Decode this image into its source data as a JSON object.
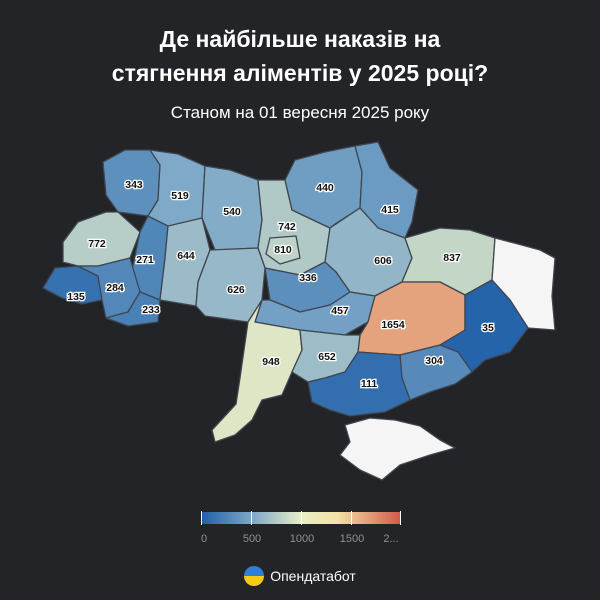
{
  "title_line1": "Де найбільше наказів на",
  "title_line2": "стягнення аліментів у 2025 році?",
  "subtitle": "Станом на 01 вересня 2025 року",
  "brand": "Опендатабот",
  "colors": {
    "background": "#232427",
    "low": "#1e5fa8",
    "mid": "#e8efc6",
    "high": "#d1584a",
    "no_data": "#f5f5f5"
  },
  "legend": {
    "ticks": [
      "0",
      "500",
      "1000",
      "1500",
      "2..."
    ],
    "min": 0,
    "max": 2000
  },
  "regions": [
    {
      "name": "Volyn",
      "value": 343
    },
    {
      "name": "Rivne",
      "value": 519
    },
    {
      "name": "Zhytomyr",
      "value": 540
    },
    {
      "name": "Kyiv oblast",
      "value": 742
    },
    {
      "name": "Kyiv city",
      "value": 810
    },
    {
      "name": "Chernihiv",
      "value": 440
    },
    {
      "name": "Sumy",
      "value": 415
    },
    {
      "name": "Lviv",
      "value": 772
    },
    {
      "name": "Ternopil",
      "value": 271
    },
    {
      "name": "Khmelnytskyi",
      "value": 644
    },
    {
      "name": "Poltava",
      "value": 606
    },
    {
      "name": "Kharkiv",
      "value": 837
    },
    {
      "name": "Zakarpattia",
      "value": 135
    },
    {
      "name": "Ivano-Frankivsk",
      "value": 284
    },
    {
      "name": "Chernivtsi",
      "value": 233
    },
    {
      "name": "Vinnytsia",
      "value": 626
    },
    {
      "name": "Cherkasy",
      "value": 336
    },
    {
      "name": "Kirovohrad",
      "value": 457
    },
    {
      "name": "Dnipropetrovsk",
      "value": 1654
    },
    {
      "name": "Donetsk",
      "value": 35
    },
    {
      "name": "Odesa",
      "value": 948
    },
    {
      "name": "Mykolaiv",
      "value": 652
    },
    {
      "name": "Zaporizhzhia",
      "value": 304
    },
    {
      "name": "Kherson",
      "value": 111
    },
    {
      "name": "Luhansk",
      "value": null
    },
    {
      "name": "Crimea",
      "value": null
    }
  ]
}
